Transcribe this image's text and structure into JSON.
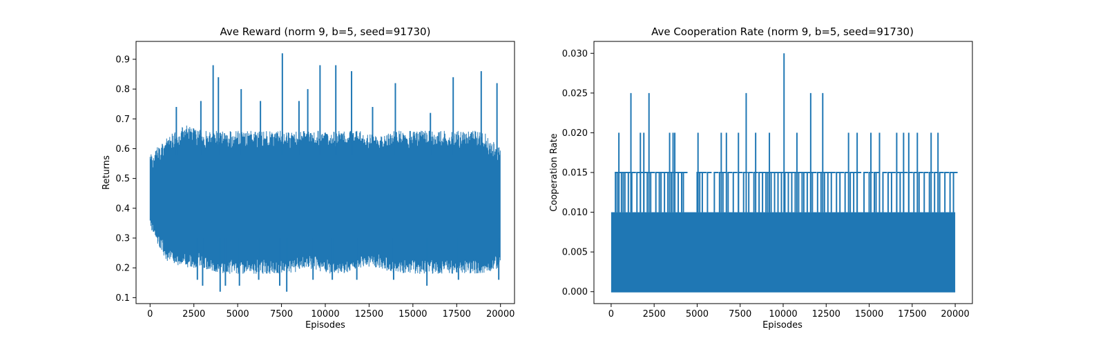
{
  "chart_data": [
    {
      "type": "line",
      "title": "Ave Reward (norm 9, b=5, seed=91730)",
      "xlabel": "Episodes",
      "ylabel": "Returns",
      "xlim": [
        -800,
        20800
      ],
      "ylim": [
        0.08,
        0.96
      ],
      "xticks": [
        0,
        2500,
        5000,
        7500,
        10000,
        12500,
        15000,
        17500,
        20000
      ],
      "xtick_labels": [
        "0",
        "2500",
        "5000",
        "7500",
        "10000",
        "12500",
        "15000",
        "17500",
        "20000"
      ],
      "yticks": [
        0.1,
        0.2,
        0.3,
        0.4,
        0.5,
        0.6,
        0.7,
        0.8,
        0.9
      ],
      "ytick_labels": [
        "0.1",
        "0.2",
        "0.3",
        "0.4",
        "0.5",
        "0.6",
        "0.7",
        "0.8",
        "0.9"
      ],
      "grid": false,
      "color": "#1f77b4",
      "series": [
        {
          "x": [
            0,
            1000,
            2000,
            3000,
            4000,
            5000,
            6000,
            7000,
            8000,
            9000,
            10000,
            11000,
            12000,
            13000,
            14000,
            15000,
            16000,
            17000,
            18000,
            19000,
            20000
          ],
          "band_low": [
            0.32,
            0.22,
            0.2,
            0.2,
            0.18,
            0.18,
            0.18,
            0.18,
            0.18,
            0.2,
            0.18,
            0.18,
            0.2,
            0.2,
            0.18,
            0.18,
            0.18,
            0.18,
            0.18,
            0.18,
            0.2
          ],
          "band_high": [
            0.58,
            0.64,
            0.68,
            0.66,
            0.66,
            0.66,
            0.66,
            0.66,
            0.66,
            0.66,
            0.66,
            0.66,
            0.66,
            0.64,
            0.66,
            0.66,
            0.66,
            0.66,
            0.66,
            0.66,
            0.6
          ],
          "spikes_high": [
            [
              1500,
              0.74
            ],
            [
              2900,
              0.76
            ],
            [
              3600,
              0.88
            ],
            [
              3900,
              0.84
            ],
            [
              5200,
              0.8
            ],
            [
              6300,
              0.76
            ],
            [
              7550,
              0.92
            ],
            [
              8500,
              0.76
            ],
            [
              9000,
              0.8
            ],
            [
              9700,
              0.88
            ],
            [
              10600,
              0.88
            ],
            [
              11500,
              0.86
            ],
            [
              12700,
              0.74
            ],
            [
              14000,
              0.82
            ],
            [
              16000,
              0.72
            ],
            [
              17300,
              0.84
            ],
            [
              18900,
              0.86
            ],
            [
              19800,
              0.82
            ]
          ],
          "spikes_low": [
            [
              2700,
              0.16
            ],
            [
              3000,
              0.14
            ],
            [
              4000,
              0.12
            ],
            [
              4300,
              0.14
            ],
            [
              5100,
              0.14
            ],
            [
              6200,
              0.16
            ],
            [
              7400,
              0.14
            ],
            [
              7800,
              0.12
            ],
            [
              9300,
              0.16
            ],
            [
              10400,
              0.16
            ],
            [
              11800,
              0.16
            ],
            [
              13900,
              0.16
            ],
            [
              15800,
              0.14
            ],
            [
              17600,
              0.16
            ],
            [
              19900,
              0.16
            ]
          ]
        }
      ]
    },
    {
      "type": "line",
      "title": "Ave Cooperation Rate (norm 9, b=5, seed=91730)",
      "xlabel": "Episodes",
      "ylabel": "Cooperation Rate",
      "xlim": [
        -1000,
        21000
      ],
      "ylim": [
        -0.0015,
        0.0315
      ],
      "xticks": [
        0,
        2500,
        5000,
        7500,
        10000,
        12500,
        15000,
        17500,
        20000
      ],
      "xtick_labels": [
        "0",
        "2500",
        "5000",
        "7500",
        "10000",
        "12500",
        "15000",
        "17500",
        "20000"
      ],
      "yticks": [
        0,
        0.005,
        0.01,
        0.015,
        0.02,
        0.025,
        0.03
      ],
      "ytick_labels": [
        "0.000",
        "0.005",
        "0.010",
        "0.015",
        "0.020",
        "0.025",
        "0.030"
      ],
      "grid": false,
      "color": "#1f77b4",
      "series": [
        {
          "band_low": 0,
          "band_high": 0.01,
          "level_015_x": [
            250,
            350,
            450,
            600,
            700,
            800,
            1000,
            1200,
            1500,
            1700,
            1900,
            2100,
            2300,
            2600,
            2800,
            2900,
            3100,
            3300,
            3500,
            3700,
            3900,
            4100,
            4200,
            5000,
            5150,
            5300,
            5600,
            6000,
            6300,
            6500,
            6800,
            7100,
            7400,
            7700,
            8000,
            8300,
            8600,
            8800,
            9000,
            9100,
            9300,
            9500,
            9700,
            9900,
            10100,
            10300,
            10500,
            10700,
            10900,
            11100,
            11200,
            11400,
            11600,
            11700,
            12000,
            12200,
            12400,
            12600,
            12800,
            13100,
            13300,
            13600,
            13900,
            14100,
            14300,
            14700,
            15000,
            15300,
            15400,
            15800,
            16100,
            16300,
            16600,
            16800,
            17000,
            17300,
            17600,
            17900,
            18200,
            18500,
            18800,
            19100,
            19400,
            19700,
            19900
          ],
          "level_020": [
            [
              450,
              0.02
            ],
            [
              1700,
              0.02
            ],
            [
              1900,
              0.02
            ],
            [
              3400,
              0.02
            ],
            [
              3600,
              0.02
            ],
            [
              3700,
              0.02
            ],
            [
              5050,
              0.02
            ],
            [
              6400,
              0.02
            ],
            [
              6700,
              0.02
            ],
            [
              7400,
              0.02
            ],
            [
              8400,
              0.02
            ],
            [
              9200,
              0.02
            ],
            [
              10800,
              0.02
            ],
            [
              13800,
              0.02
            ],
            [
              14300,
              0.02
            ],
            [
              15100,
              0.02
            ],
            [
              15600,
              0.02
            ],
            [
              16600,
              0.02
            ],
            [
              17000,
              0.02
            ],
            [
              17300,
              0.02
            ],
            [
              17800,
              0.02
            ],
            [
              18600,
              0.02
            ],
            [
              19000,
              0.02
            ]
          ],
          "level_025": [
            [
              1150,
              0.025
            ],
            [
              2200,
              0.025
            ],
            [
              7850,
              0.025
            ],
            [
              11600,
              0.025
            ],
            [
              12300,
              0.025
            ]
          ],
          "level_030": [
            [
              10050,
              0.03
            ]
          ]
        }
      ]
    }
  ]
}
